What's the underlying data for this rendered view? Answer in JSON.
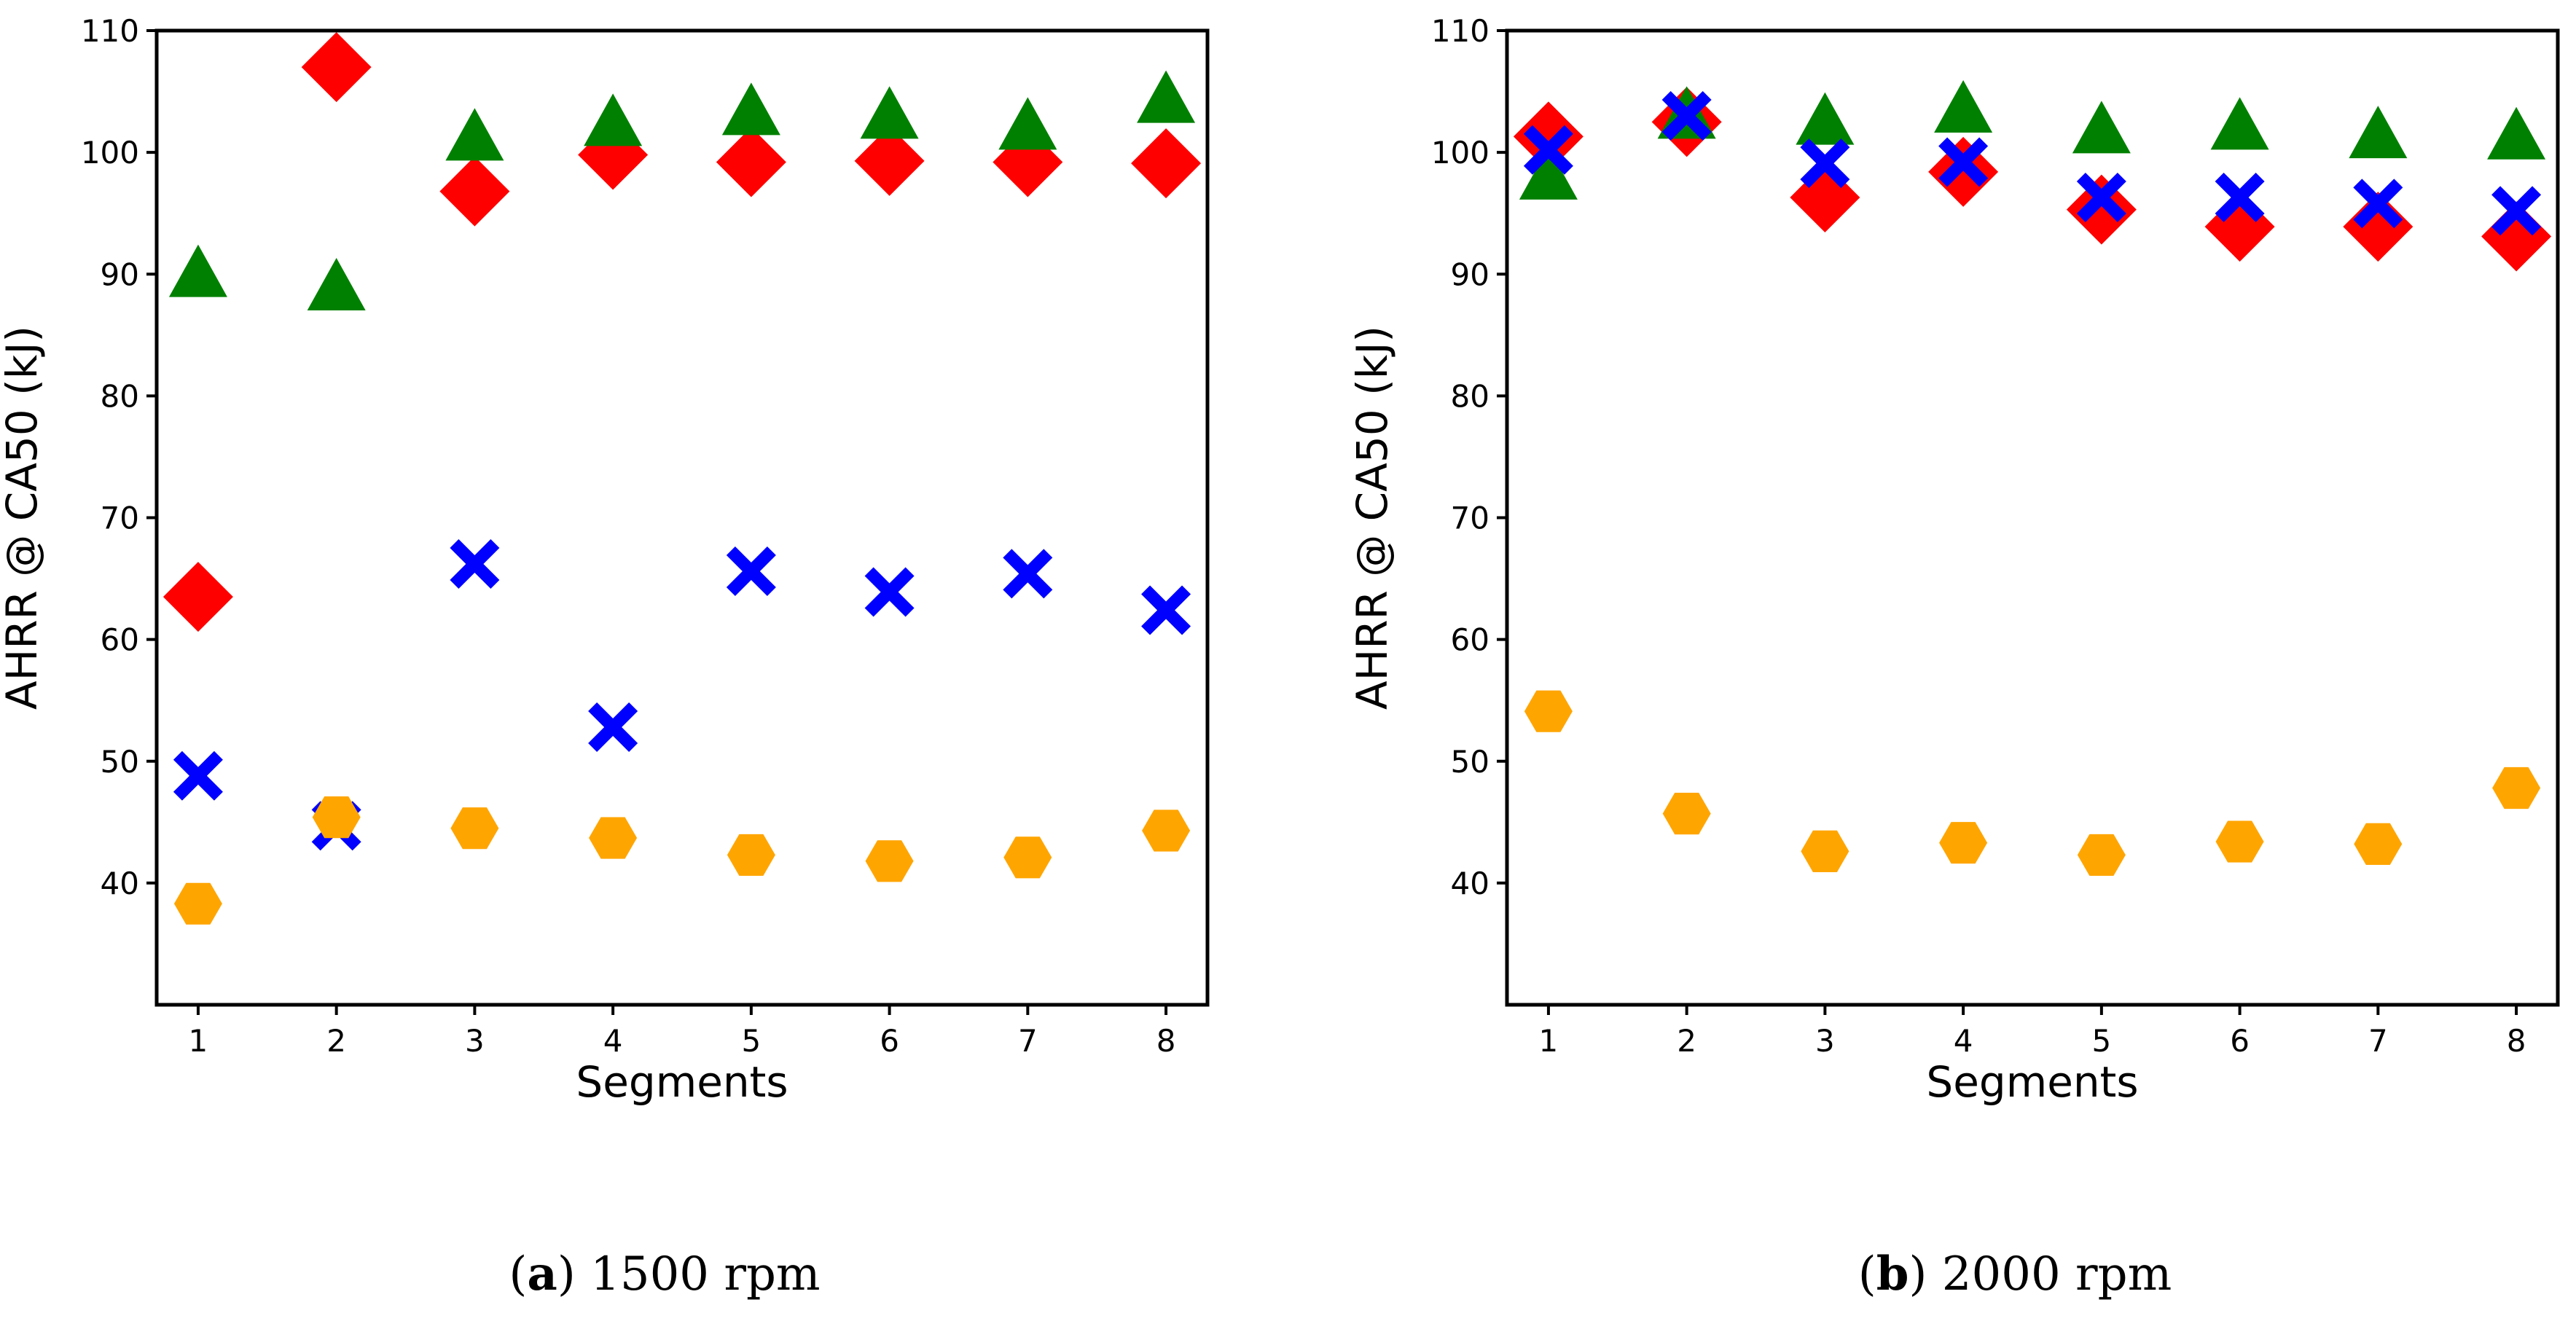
{
  "chart_data": [
    {
      "type": "scatter",
      "caption": {
        "letter": "a",
        "text": "1500 rpm"
      },
      "title": "",
      "xlabel": "Segments",
      "ylabel": "AHRR @ CA50 (kJ)",
      "xlim": [
        0.7,
        8.3
      ],
      "ylim": [
        30,
        110
      ],
      "x_ticks": [
        1,
        2,
        3,
        4,
        5,
        6,
        7,
        8
      ],
      "y_ticks": [
        40,
        50,
        60,
        70,
        80,
        90,
        100,
        110
      ],
      "x": [
        1,
        2,
        3,
        4,
        5,
        6,
        7,
        8
      ],
      "series": [
        {
          "name": "diamond-series",
          "marker": "diamond",
          "color": "#ff0000",
          "values": [
            63.5,
            107,
            96.8,
            99.8,
            99.2,
            99.3,
            99.2,
            99.1
          ]
        },
        {
          "name": "triangle-series",
          "marker": "triangle",
          "color": "#008000",
          "values": [
            89.8,
            88.7,
            101,
            102.2,
            103.1,
            102.8,
            101.9,
            104.1
          ]
        },
        {
          "name": "x-series",
          "marker": "x",
          "color": "#0000ff",
          "values": [
            48.8,
            44.7,
            66.2,
            52.8,
            65.6,
            63.9,
            65.4,
            62.4
          ]
        },
        {
          "name": "hexagon-series",
          "marker": "hexagon",
          "color": "#ffa500",
          "values": [
            38.3,
            45.4,
            44.5,
            43.7,
            42.3,
            41.8,
            42.1,
            44.3
          ]
        }
      ]
    },
    {
      "type": "scatter",
      "caption": {
        "letter": "b",
        "text": "2000 rpm"
      },
      "title": "",
      "xlabel": "Segments",
      "ylabel": "AHRR @ CA50 (kJ)",
      "xlim": [
        0.7,
        8.3
      ],
      "ylim": [
        30,
        110
      ],
      "x_ticks": [
        1,
        2,
        3,
        4,
        5,
        6,
        7,
        8
      ],
      "y_ticks": [
        40,
        50,
        60,
        70,
        80,
        90,
        100,
        110
      ],
      "x": [
        1,
        2,
        3,
        4,
        5,
        6,
        7,
        8
      ],
      "series": [
        {
          "name": "diamond-series",
          "marker": "diamond",
          "color": "#ff0000",
          "values": [
            101.3,
            102.5,
            96.3,
            98.4,
            95.3,
            93.9,
            93.9,
            93.1
          ]
        },
        {
          "name": "triangle-series",
          "marker": "triangle",
          "color": "#008000",
          "values": [
            97.8,
            102.8,
            102.3,
            103.3,
            101.6,
            101.9,
            101.2,
            101.1
          ]
        },
        {
          "name": "x-series",
          "marker": "x",
          "color": "#0000ff",
          "values": [
            100.2,
            103,
            99.1,
            99.2,
            96.3,
            96.3,
            95.8,
            95.2
          ]
        },
        {
          "name": "hexagon-series",
          "marker": "hexagon",
          "color": "#ffa500",
          "values": [
            54.1,
            45.7,
            42.6,
            43.3,
            42.3,
            43.4,
            43.2,
            47.8
          ]
        }
      ]
    }
  ]
}
